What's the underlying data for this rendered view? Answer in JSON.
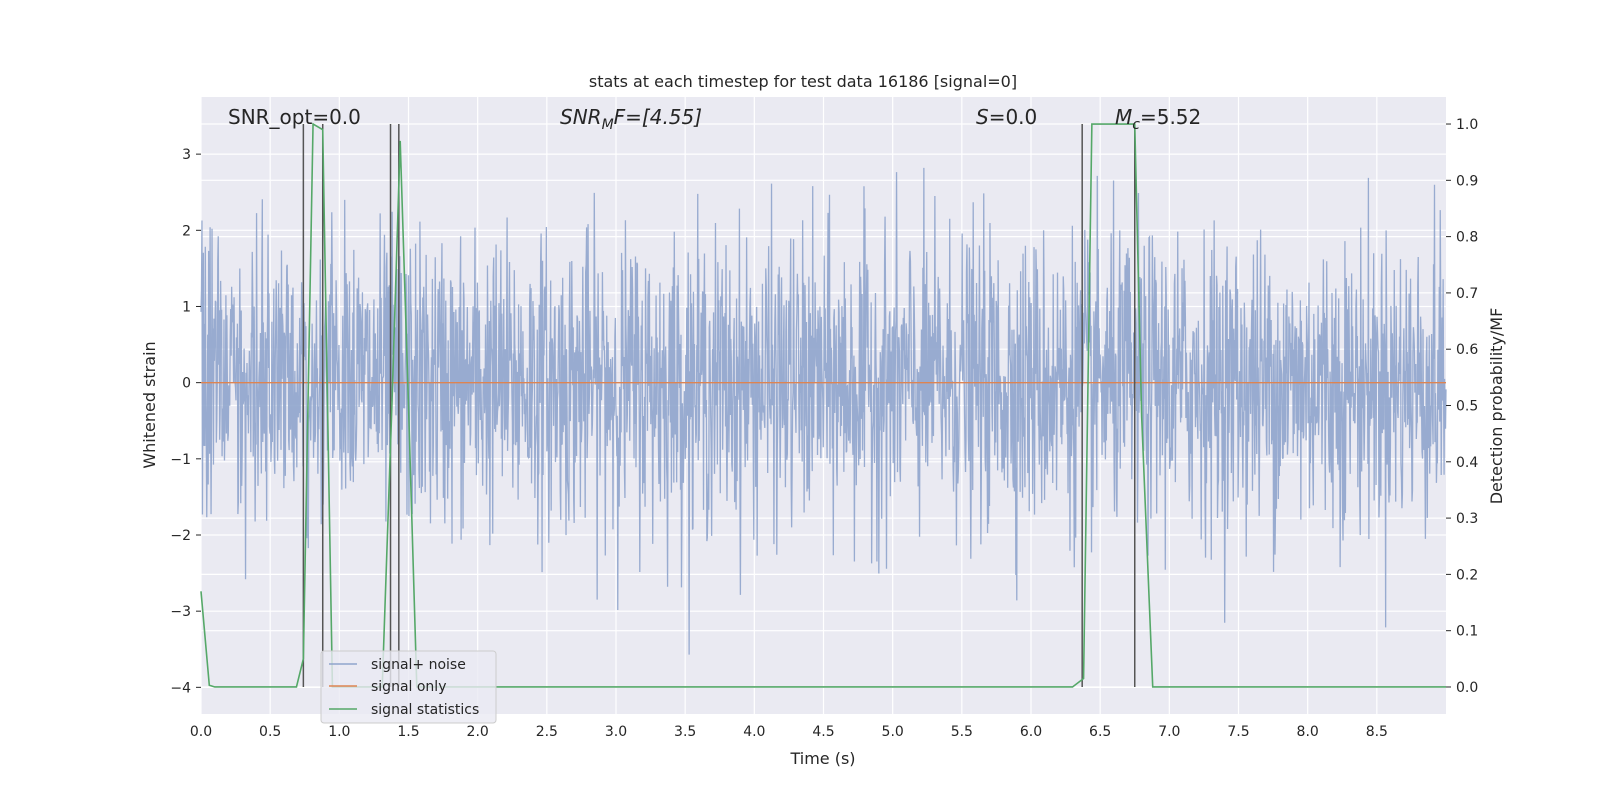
{
  "chart_data": {
    "type": "line",
    "title": "stats at each timestep for test data 16186 [signal=0]",
    "xlabel": "Time (s)",
    "ylabel_left": "Whitened strain",
    "ylabel_right": "Detection probability/MF",
    "xlim": [
      0,
      9.0
    ],
    "ylim_left": [
      -4.35,
      3.75
    ],
    "ylim_right": [
      -0.048,
      1.048
    ],
    "x_ticks": [
      "0.0",
      "0.5",
      "1.0",
      "1.5",
      "2.0",
      "2.5",
      "3.0",
      "3.5",
      "4.0",
      "4.5",
      "5.0",
      "5.5",
      "6.0",
      "6.5",
      "7.0",
      "7.5",
      "8.0",
      "8.5"
    ],
    "y_left_ticks": [
      "−4",
      "−3",
      "−2",
      "−1",
      "0",
      "1",
      "2",
      "3"
    ],
    "y_right_ticks": [
      "0.0",
      "0.1",
      "0.2",
      "0.3",
      "0.4",
      "0.5",
      "0.6",
      "0.7",
      "0.8",
      "0.9",
      "1.0"
    ],
    "grid": true,
    "legend_position": "lower-left",
    "annotations": {
      "snr_opt": "SNR_opt=0.0",
      "snr_mf_base": "SNR",
      "snr_mf_sub": "M",
      "snr_mf_rest": "F=[4.55]",
      "s_italic": "S",
      "s_rest": "=0.0",
      "mc_base": "M",
      "mc_sub": "c",
      "mc_rest": "=5.52"
    },
    "series": [
      {
        "name": "signal+ noise",
        "color": "#8fa4cc",
        "axis": "left",
        "description_type": "noise",
        "noise_amplitude_envelope": [
          2.1,
          3.6
        ]
      },
      {
        "name": "signal only",
        "color": "#dd8452",
        "axis": "left",
        "x": [
          0,
          9.0
        ],
        "values": [
          0,
          0
        ]
      },
      {
        "name": "signal statistics",
        "color": "#55a868",
        "axis": "right",
        "x": [
          0.0,
          0.06,
          0.1,
          0.69,
          0.74,
          0.81,
          0.88,
          0.95,
          1.31,
          1.38,
          1.44,
          1.5,
          1.56,
          2.0,
          4.0,
          6.0,
          6.3,
          6.38,
          6.44,
          6.5,
          6.75,
          6.8,
          6.88,
          7.0,
          8.0,
          9.0
        ],
        "values": [
          0.17,
          0.003,
          0.0,
          0.0,
          0.05,
          1.0,
          0.99,
          0.0,
          0.0,
          0.5,
          0.97,
          0.5,
          0.0,
          0.0,
          0.0,
          0.0,
          0.0,
          0.015,
          1.0,
          1.0,
          1.0,
          0.48,
          0.0,
          0.0,
          0.0,
          0.0
        ]
      }
    ],
    "vertical_markers": [
      0.74,
      0.88,
      1.37,
      1.43,
      6.37,
      6.75
    ]
  }
}
